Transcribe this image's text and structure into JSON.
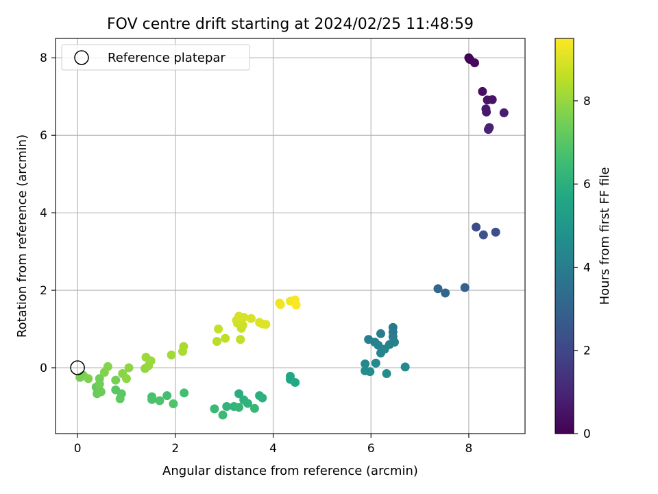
{
  "chart_data": {
    "type": "scatter",
    "title": "FOV centre drift starting at 2024/02/25 11:48:59",
    "xlabel": "Angular distance from reference (arcmin)",
    "ylabel": "Rotation from reference (arcmin)",
    "xlim": [
      -0.45,
      9.15
    ],
    "ylim": [
      -1.7,
      8.5
    ],
    "xticks": [
      0,
      2,
      4,
      6,
      8
    ],
    "yticks": [
      0,
      2,
      4,
      6,
      8
    ],
    "grid": true,
    "legend": {
      "placement": "top-left",
      "entries": [
        "Reference platepar"
      ]
    },
    "reference_point": {
      "x": 0,
      "y": 0,
      "label": "Reference platepar"
    },
    "colorbar": {
      "label": "Hours from first FF file",
      "colormap": "viridis",
      "range": [
        0,
        9.5
      ],
      "ticks": [
        0,
        2,
        4,
        6,
        8
      ]
    },
    "points": [
      {
        "x": 8.0,
        "y": 8.0,
        "c": 0.05
      },
      {
        "x": 8.02,
        "y": 7.96,
        "c": 0.1
      },
      {
        "x": 8.12,
        "y": 7.87,
        "c": 0.2
      },
      {
        "x": 8.28,
        "y": 7.13,
        "c": 0.4
      },
      {
        "x": 8.48,
        "y": 6.92,
        "c": 0.5
      },
      {
        "x": 8.38,
        "y": 6.91,
        "c": 0.55
      },
      {
        "x": 8.35,
        "y": 6.68,
        "c": 0.6
      },
      {
        "x": 8.36,
        "y": 6.6,
        "c": 0.65
      },
      {
        "x": 8.72,
        "y": 6.58,
        "c": 0.75
      },
      {
        "x": 8.42,
        "y": 6.2,
        "c": 0.85
      },
      {
        "x": 8.4,
        "y": 6.15,
        "c": 0.9
      },
      {
        "x": 8.15,
        "y": 3.63,
        "c": 2.2
      },
      {
        "x": 8.55,
        "y": 3.5,
        "c": 2.3
      },
      {
        "x": 8.3,
        "y": 3.43,
        "c": 2.4
      },
      {
        "x": 7.92,
        "y": 2.07,
        "c": 3.0
      },
      {
        "x": 7.37,
        "y": 2.04,
        "c": 3.1
      },
      {
        "x": 7.52,
        "y": 1.93,
        "c": 3.15
      },
      {
        "x": 6.45,
        "y": 1.04,
        "c": 3.8
      },
      {
        "x": 6.45,
        "y": 0.92,
        "c": 3.85
      },
      {
        "x": 6.2,
        "y": 0.88,
        "c": 3.9
      },
      {
        "x": 6.45,
        "y": 0.8,
        "c": 3.95
      },
      {
        "x": 5.95,
        "y": 0.73,
        "c": 4.0
      },
      {
        "x": 6.08,
        "y": 0.66,
        "c": 4.05
      },
      {
        "x": 6.48,
        "y": 0.66,
        "c": 4.1
      },
      {
        "x": 6.38,
        "y": 0.6,
        "c": 4.15
      },
      {
        "x": 6.15,
        "y": 0.58,
        "c": 4.2
      },
      {
        "x": 6.28,
        "y": 0.48,
        "c": 4.25
      },
      {
        "x": 6.2,
        "y": 0.38,
        "c": 4.3
      },
      {
        "x": 5.88,
        "y": 0.1,
        "c": 4.4
      },
      {
        "x": 6.1,
        "y": 0.12,
        "c": 4.45
      },
      {
        "x": 6.7,
        "y": 0.02,
        "c": 4.5
      },
      {
        "x": 5.88,
        "y": -0.08,
        "c": 4.55
      },
      {
        "x": 5.98,
        "y": -0.1,
        "c": 4.6
      },
      {
        "x": 6.32,
        "y": -0.15,
        "c": 4.65
      },
      {
        "x": 4.35,
        "y": -0.22,
        "c": 5.6
      },
      {
        "x": 4.35,
        "y": -0.3,
        "c": 5.65
      },
      {
        "x": 4.45,
        "y": -0.38,
        "c": 5.7
      },
      {
        "x": 3.3,
        "y": -0.67,
        "c": 5.9
      },
      {
        "x": 3.72,
        "y": -0.72,
        "c": 5.95
      },
      {
        "x": 3.78,
        "y": -0.78,
        "c": 6.0
      },
      {
        "x": 3.4,
        "y": -0.83,
        "c": 6.05
      },
      {
        "x": 3.48,
        "y": -0.92,
        "c": 6.1
      },
      {
        "x": 3.05,
        "y": -1.0,
        "c": 6.15
      },
      {
        "x": 3.2,
        "y": -1.0,
        "c": 6.2
      },
      {
        "x": 3.3,
        "y": -1.02,
        "c": 6.25
      },
      {
        "x": 3.62,
        "y": -1.05,
        "c": 6.3
      },
      {
        "x": 2.8,
        "y": -1.06,
        "c": 6.35
      },
      {
        "x": 2.97,
        "y": -1.22,
        "c": 6.4
      },
      {
        "x": 2.18,
        "y": -0.65,
        "c": 6.6
      },
      {
        "x": 1.83,
        "y": -0.72,
        "c": 6.65
      },
      {
        "x": 1.52,
        "y": -0.75,
        "c": 6.7
      },
      {
        "x": 1.52,
        "y": -0.82,
        "c": 6.75
      },
      {
        "x": 1.68,
        "y": -0.85,
        "c": 6.8
      },
      {
        "x": 1.96,
        "y": -0.93,
        "c": 6.85
      },
      {
        "x": 0.78,
        "y": -0.57,
        "c": 7.0
      },
      {
        "x": 0.9,
        "y": -0.67,
        "c": 7.05
      },
      {
        "x": 0.87,
        "y": -0.8,
        "c": 7.1
      },
      {
        "x": 0.38,
        "y": -0.5,
        "c": 7.2
      },
      {
        "x": 0.45,
        "y": -0.58,
        "c": 7.25
      },
      {
        "x": 0.4,
        "y": -0.67,
        "c": 7.3
      },
      {
        "x": 0.48,
        "y": -0.62,
        "c": 7.35
      },
      {
        "x": 0.45,
        "y": -0.42,
        "c": 7.4
      },
      {
        "x": 0.45,
        "y": -0.28,
        "c": 7.45
      },
      {
        "x": 0.78,
        "y": -0.32,
        "c": 7.5
      },
      {
        "x": 0.05,
        "y": -0.25,
        "c": 7.55
      },
      {
        "x": 0.12,
        "y": -0.2,
        "c": 7.6
      },
      {
        "x": 0.22,
        "y": -0.28,
        "c": 7.65
      },
      {
        "x": 0.55,
        "y": -0.12,
        "c": 7.7
      },
      {
        "x": 0.62,
        "y": 0.03,
        "c": 7.75
      },
      {
        "x": 0.92,
        "y": -0.15,
        "c": 7.8
      },
      {
        "x": 1.0,
        "y": -0.28,
        "c": 7.85
      },
      {
        "x": 1.05,
        "y": 0.0,
        "c": 7.9
      },
      {
        "x": 1.38,
        "y": -0.02,
        "c": 7.95
      },
      {
        "x": 1.45,
        "y": 0.05,
        "c": 8.0
      },
      {
        "x": 1.5,
        "y": 0.18,
        "c": 8.05
      },
      {
        "x": 1.4,
        "y": 0.27,
        "c": 8.1
      },
      {
        "x": 1.92,
        "y": 0.33,
        "c": 8.2
      },
      {
        "x": 2.15,
        "y": 0.42,
        "c": 8.25
      },
      {
        "x": 2.17,
        "y": 0.55,
        "c": 8.3
      },
      {
        "x": 2.85,
        "y": 0.68,
        "c": 8.5
      },
      {
        "x": 3.02,
        "y": 0.76,
        "c": 8.55
      },
      {
        "x": 3.33,
        "y": 0.73,
        "c": 8.6
      },
      {
        "x": 2.88,
        "y": 1.0,
        "c": 8.65
      },
      {
        "x": 3.35,
        "y": 1.02,
        "c": 8.7
      },
      {
        "x": 3.27,
        "y": 1.15,
        "c": 8.75
      },
      {
        "x": 3.38,
        "y": 1.1,
        "c": 8.8
      },
      {
        "x": 3.25,
        "y": 1.22,
        "c": 8.85
      },
      {
        "x": 3.3,
        "y": 1.33,
        "c": 8.9
      },
      {
        "x": 3.4,
        "y": 1.3,
        "c": 8.9
      },
      {
        "x": 3.55,
        "y": 1.27,
        "c": 8.95
      },
      {
        "x": 3.72,
        "y": 1.17,
        "c": 9.0
      },
      {
        "x": 3.78,
        "y": 1.13,
        "c": 9.05
      },
      {
        "x": 3.85,
        "y": 1.12,
        "c": 9.05
      },
      {
        "x": 4.13,
        "y": 1.67,
        "c": 9.3
      },
      {
        "x": 4.15,
        "y": 1.63,
        "c": 9.3
      },
      {
        "x": 4.35,
        "y": 1.72,
        "c": 9.35
      },
      {
        "x": 4.45,
        "y": 1.75,
        "c": 9.4
      },
      {
        "x": 4.47,
        "y": 1.62,
        "c": 9.45
      }
    ]
  }
}
